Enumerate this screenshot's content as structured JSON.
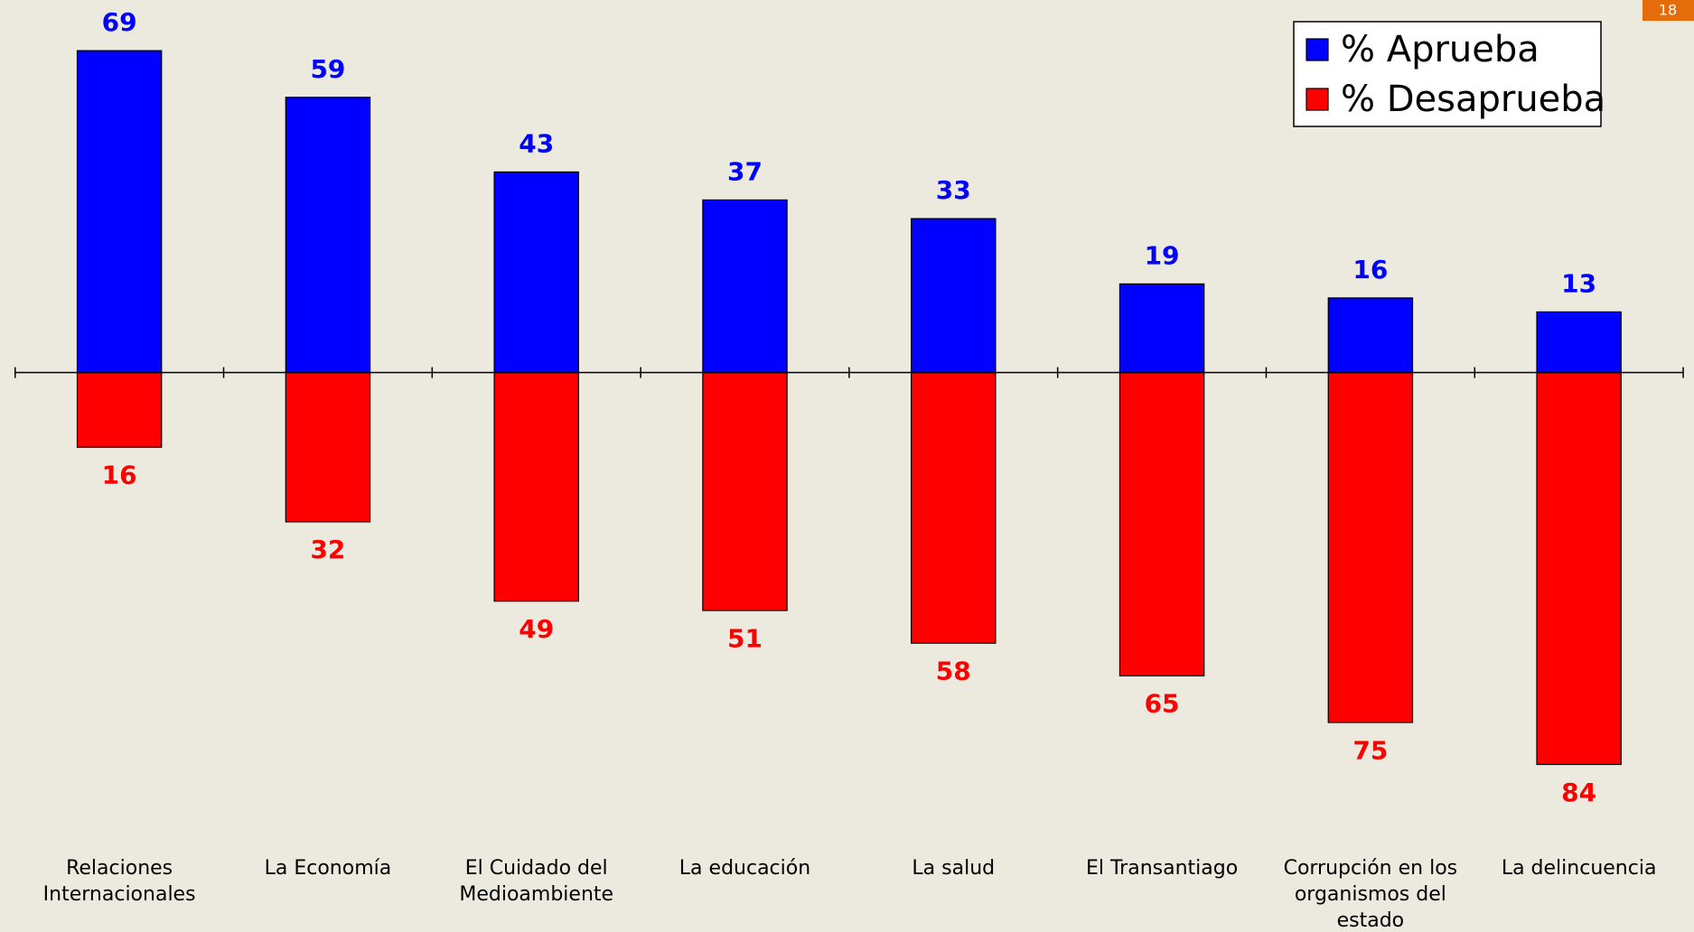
{
  "page_number": "18",
  "chart_data": {
    "type": "diverging_bar",
    "categories": [
      "Relaciones Internacionales",
      "La Economía",
      "El Cuidado del Medioambiente",
      "La educación",
      "La salud",
      "El Transantiago",
      "Corrupción en los organismos del estado",
      "La delincuencia"
    ],
    "series": [
      {
        "name": "% Aprueba",
        "color": "#0000ff",
        "direction": "up",
        "values": [
          69,
          59,
          43,
          37,
          33,
          19,
          16,
          13
        ]
      },
      {
        "name": "% Desaprueba",
        "color": "#ff0000",
        "direction": "down",
        "values": [
          16,
          32,
          49,
          51,
          58,
          65,
          75,
          84
        ]
      }
    ],
    "legend": "top-right"
  }
}
